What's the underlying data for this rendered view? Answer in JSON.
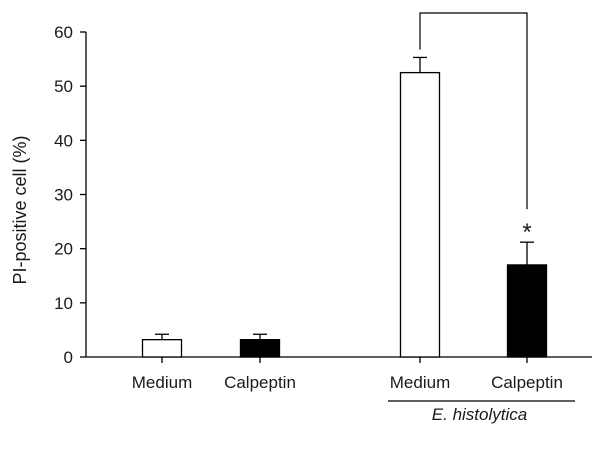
{
  "chart_data": {
    "type": "bar",
    "ylabel": "PI-positive cell (%)",
    "xlabel": "",
    "ylim": [
      0,
      60
    ],
    "yticks": [
      0,
      10,
      20,
      30,
      40,
      50,
      60
    ],
    "grid": false,
    "categories": [
      "Medium",
      "Calpeptin",
      "Medium",
      "Calpeptin"
    ],
    "values": [
      3.2,
      3.2,
      52.5,
      17.0
    ],
    "errors": [
      1.0,
      1.0,
      2.8,
      4.2
    ],
    "bar_fill": [
      "#ffffff",
      "#000000",
      "#ffffff",
      "#000000"
    ],
    "group_label": "E. histolytica",
    "group_members": [
      2,
      3
    ],
    "significance": {
      "between": [
        2,
        3
      ],
      "mark": "*",
      "on": 3
    }
  }
}
